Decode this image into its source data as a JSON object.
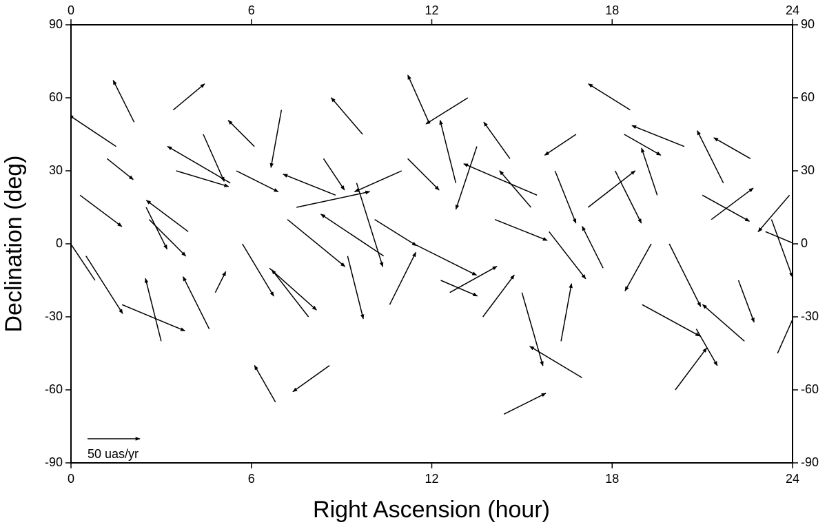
{
  "chart_data": {
    "type": "quiver",
    "xlabel": "Right Ascension (hour)",
    "ylabel": "Declination (deg)",
    "xlim": [
      0,
      24
    ],
    "ylim": [
      -90,
      90
    ],
    "xticks": [
      0,
      6,
      12,
      18,
      24
    ],
    "yticks": [
      -90,
      -60,
      -30,
      0,
      30,
      60,
      90
    ],
    "color": "#000000",
    "scale": {
      "value": 50,
      "label": "50 uas/yr"
    },
    "x": [
      0.3,
      0.8,
      1.2,
      1.7,
      2.1,
      2.6,
      3.0,
      3.5,
      3.9,
      4.4,
      4.8,
      5.3,
      5.7,
      6.1,
      6.6,
      7.0,
      7.5,
      7.9,
      8.4,
      8.8,
      9.2,
      9.7,
      10.1,
      10.6,
      11.0,
      11.4,
      11.9,
      12.3,
      12.8,
      13.2,
      13.7,
      14.1,
      14.6,
      15.0,
      15.5,
      15.9,
      16.3,
      16.8,
      17.2,
      17.7,
      18.1,
      18.6,
      19.0,
      19.5,
      19.9,
      20.4,
      20.8,
      21.3,
      21.7,
      22.2,
      22.6,
      23.1,
      23.5,
      23.9,
      0.5,
      1.5,
      2.5,
      3.4,
      4.6,
      5.5,
      6.8,
      7.2,
      8.6,
      9.5,
      10.4,
      11.2,
      12.6,
      13.5,
      14.4,
      15.3,
      16.1,
      17.0,
      18.4,
      19.3,
      20.1,
      21.0,
      22.4,
      23.3
    ],
    "y": [
      20,
      -15,
      35,
      -25,
      50,
      10,
      -40,
      30,
      5,
      45,
      -20,
      25,
      0,
      40,
      -10,
      55,
      15,
      -30,
      35,
      20,
      -5,
      45,
      10,
      -25,
      30,
      0,
      50,
      -15,
      25,
      60,
      -30,
      10,
      35,
      -20,
      20,
      5,
      -40,
      45,
      15,
      -10,
      30,
      55,
      -25,
      20,
      0,
      40,
      -35,
      10,
      25,
      -15,
      35,
      5,
      -45,
      20,
      -5,
      40,
      15,
      55,
      -35,
      30,
      -65,
      10,
      -50,
      25,
      -5,
      35,
      -20,
      40,
      -70,
      15,
      30,
      -55,
      45,
      0,
      -60,
      20,
      -40,
      10
    ],
    "u": [
      40,
      -30,
      25,
      60,
      -20,
      35,
      -15,
      50,
      -40,
      20,
      10,
      -60,
      30,
      -25,
      45,
      -10,
      70,
      -35,
      20,
      -50,
      15,
      -30,
      40,
      25,
      -45,
      60,
      -20,
      35,
      -15,
      -40,
      30,
      50,
      -25,
      20,
      -70,
      35,
      10,
      -30,
      45,
      -20,
      25,
      -40,
      55,
      -15,
      30,
      -50,
      20,
      40,
      -25,
      15,
      -35,
      60,
      20,
      -30,
      35,
      -45,
      20,
      30,
      -25,
      40,
      -20,
      55,
      -35,
      25,
      -60,
      30,
      45,
      -20,
      40,
      -30,
      20,
      -50,
      35,
      -25,
      30,
      45,
      -40,
      20
    ],
    "v": [
      -30,
      45,
      -20,
      -25,
      40,
      -35,
      60,
      -15,
      30,
      -45,
      20,
      35,
      -50,
      25,
      -40,
      -55,
      15,
      45,
      -30,
      20,
      -60,
      35,
      -25,
      50,
      -20,
      -30,
      45,
      -15,
      60,
      -25,
      40,
      -20,
      35,
      -70,
      30,
      -45,
      55,
      -20,
      35,
      40,
      -50,
      25,
      -30,
      45,
      -60,
      20,
      -35,
      30,
      50,
      -40,
      20,
      -25,
      45,
      -35,
      -55,
      30,
      -40,
      25,
      50,
      -20,
      35,
      -45,
      -25,
      -80,
      40,
      -30,
      25,
      -60,
      20,
      35,
      -50,
      30,
      -20,
      -45,
      40,
      -25,
      35,
      -55
    ]
  }
}
